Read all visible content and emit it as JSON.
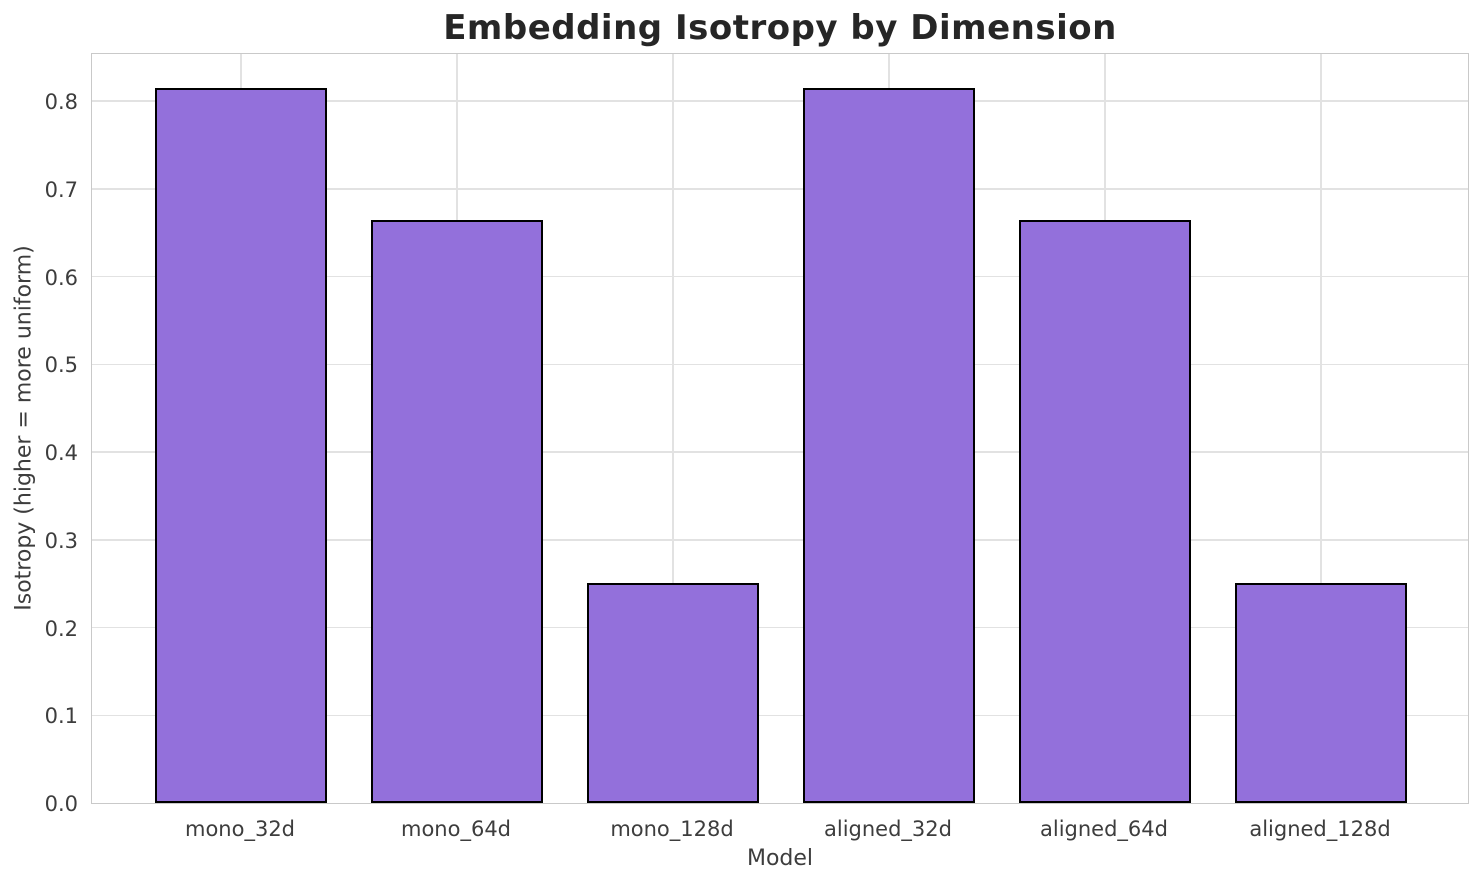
{
  "chart_data": {
    "type": "bar",
    "title": "Embedding Isotropy by Dimension",
    "xlabel": "Model",
    "ylabel": "Isotropy (higher = more uniform)",
    "categories": [
      "mono_32d",
      "mono_64d",
      "mono_128d",
      "aligned_32d",
      "aligned_64d",
      "aligned_128d"
    ],
    "values": [
      0.815,
      0.664,
      0.251,
      0.815,
      0.664,
      0.251
    ],
    "ylim": [
      0,
      0.856
    ],
    "yticks": [
      0.0,
      0.1,
      0.2,
      0.3,
      0.4,
      0.5,
      0.6,
      0.7,
      0.8
    ],
    "ytick_labels": [
      "0.0",
      "0.1",
      "0.2",
      "0.3",
      "0.4",
      "0.5",
      "0.6",
      "0.7",
      "0.8"
    ],
    "grid": true,
    "legend": false,
    "bar_fill_color": "#9370DB",
    "bar_edge_color": "#000000",
    "grid_color": "#e2e2e2",
    "spine_color": "#c9c9c9",
    "title_color": "#262626",
    "tick_label_color": "#3d3d3d"
  }
}
